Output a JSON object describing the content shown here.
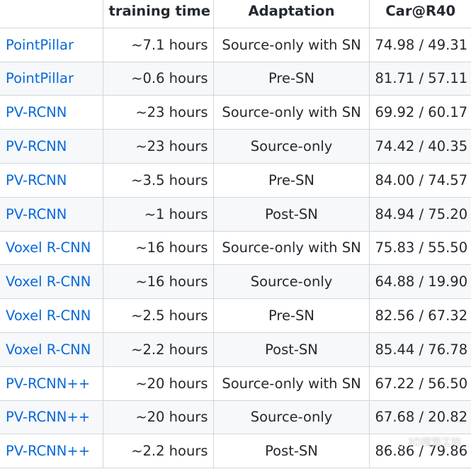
{
  "table": {
    "headers": [
      "",
      "training time",
      "Adaptation",
      "Car@R40"
    ],
    "rows": [
      {
        "model": "PointPillar",
        "time": "~7.1 hours",
        "adaptation": "Source-only with SN",
        "score": "74.98 / 49.31"
      },
      {
        "model": "PointPillar",
        "time": "~0.6 hours",
        "adaptation": "Pre-SN",
        "score": "81.71 / 57.11"
      },
      {
        "model": "PV-RCNN",
        "time": "~23 hours",
        "adaptation": "Source-only with SN",
        "score": "69.92 / 60.17"
      },
      {
        "model": "PV-RCNN",
        "time": "~23 hours",
        "adaptation": "Source-only",
        "score": "74.42 / 40.35"
      },
      {
        "model": "PV-RCNN",
        "time": "~3.5 hours",
        "adaptation": "Pre-SN",
        "score": "84.00 / 74.57"
      },
      {
        "model": "PV-RCNN",
        "time": "~1 hours",
        "adaptation": "Post-SN",
        "score": "84.94 / 75.20"
      },
      {
        "model": "Voxel R-CNN",
        "time": "~16 hours",
        "adaptation": "Source-only with SN",
        "score": "75.83 / 55.50"
      },
      {
        "model": "Voxel R-CNN",
        "time": "~16 hours",
        "adaptation": "Source-only",
        "score": "64.88 / 19.90"
      },
      {
        "model": "Voxel R-CNN",
        "time": "~2.5 hours",
        "adaptation": "Pre-SN",
        "score": "82.56 / 67.32"
      },
      {
        "model": "Voxel R-CNN",
        "time": "~2.2 hours",
        "adaptation": "Post-SN",
        "score": "85.44 / 76.78"
      },
      {
        "model": "PV-RCNN++",
        "time": "~20 hours",
        "adaptation": "Source-only with SN",
        "score": "67.22 / 56.50"
      },
      {
        "model": "PV-RCNN++",
        "time": "~20 hours",
        "adaptation": "Source-only",
        "score": "67.68 / 20.82"
      },
      {
        "model": "PV-RCNN++",
        "time": "~2.2 hours",
        "adaptation": "Post-SN",
        "score": "86.86 / 79.86"
      }
    ]
  },
  "watermark": {
    "text": "3D视觉工坊",
    "icon": "wechat-icon"
  },
  "colors": {
    "link": "#0969da",
    "border": "#d0d7de",
    "stripe": "#f6f8fa"
  }
}
